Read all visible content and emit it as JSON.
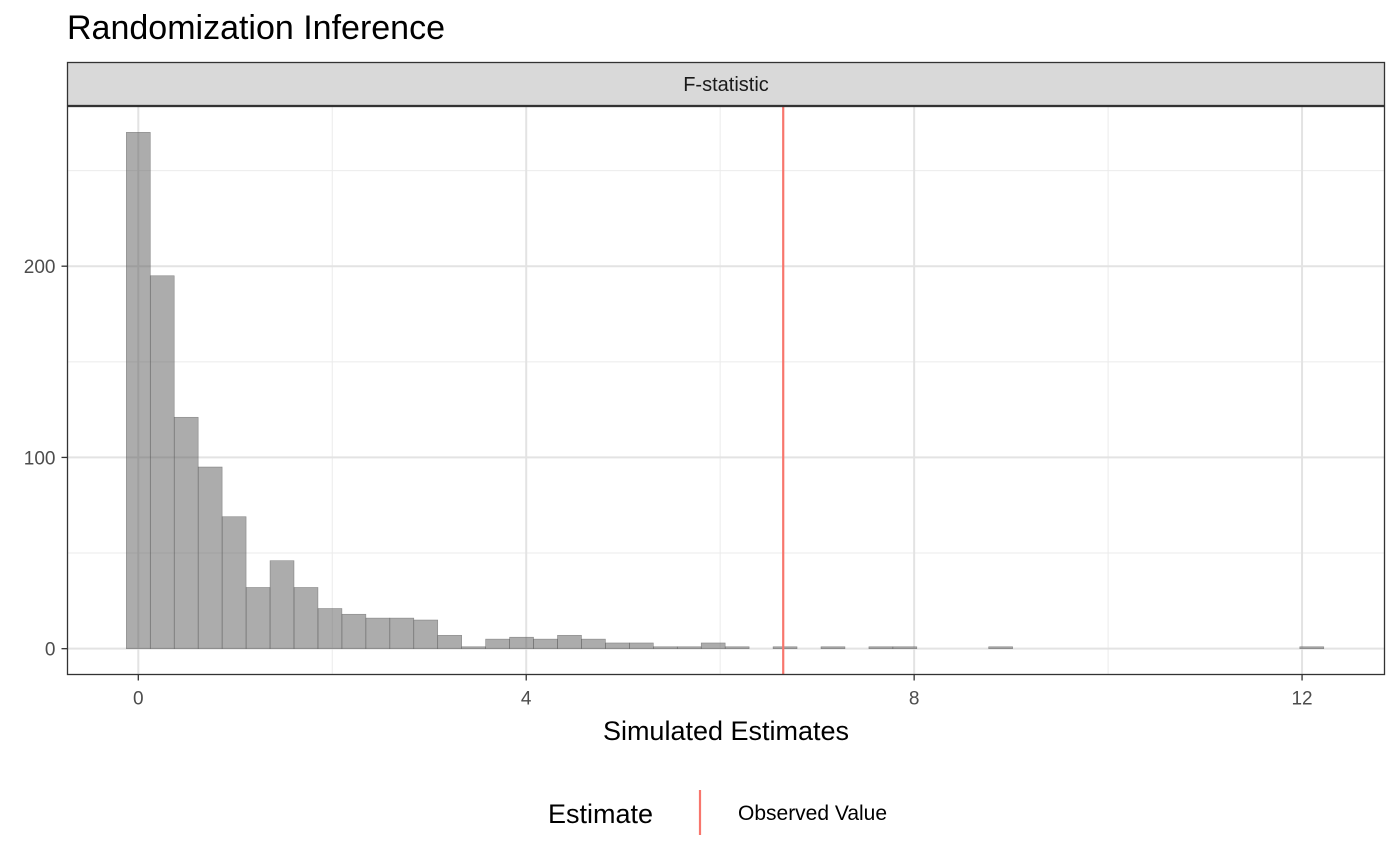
{
  "chart_data": {
    "type": "bar",
    "title": "Randomization Inference",
    "facet_label": "F-statistic",
    "xlabel": "Simulated Estimates",
    "ylabel": "",
    "xlim": [
      -0.73,
      12.85
    ],
    "ylim": [
      -13.5,
      283.5
    ],
    "x_ticks": [
      0,
      4,
      8,
      12
    ],
    "x_tick_labels": [
      "0",
      "4",
      "8",
      "12"
    ],
    "x_minor_ticks": [
      2,
      6,
      10
    ],
    "y_ticks": [
      0,
      100,
      200
    ],
    "y_tick_labels": [
      "0",
      "100",
      "200"
    ],
    "y_minor_ticks": [
      50,
      150,
      250
    ],
    "grid": true,
    "bin_width": 0.247,
    "bins": [
      {
        "x": 0.0,
        "count": 270
      },
      {
        "x": 0.247,
        "count": 195
      },
      {
        "x": 0.494,
        "count": 121
      },
      {
        "x": 0.741,
        "count": 95
      },
      {
        "x": 0.988,
        "count": 69
      },
      {
        "x": 1.235,
        "count": 32
      },
      {
        "x": 1.482,
        "count": 46
      },
      {
        "x": 1.729,
        "count": 32
      },
      {
        "x": 1.976,
        "count": 21
      },
      {
        "x": 2.223,
        "count": 18
      },
      {
        "x": 2.47,
        "count": 16
      },
      {
        "x": 2.717,
        "count": 16
      },
      {
        "x": 2.964,
        "count": 15
      },
      {
        "x": 3.211,
        "count": 7
      },
      {
        "x": 3.458,
        "count": 1
      },
      {
        "x": 3.705,
        "count": 5
      },
      {
        "x": 3.952,
        "count": 6
      },
      {
        "x": 4.199,
        "count": 5
      },
      {
        "x": 4.446,
        "count": 7
      },
      {
        "x": 4.693,
        "count": 5
      },
      {
        "x": 4.94,
        "count": 3
      },
      {
        "x": 5.187,
        "count": 3
      },
      {
        "x": 5.434,
        "count": 1
      },
      {
        "x": 5.681,
        "count": 1
      },
      {
        "x": 5.928,
        "count": 3
      },
      {
        "x": 6.175,
        "count": 1
      },
      {
        "x": 6.669,
        "count": 1
      },
      {
        "x": 7.163,
        "count": 1
      },
      {
        "x": 7.657,
        "count": 1
      },
      {
        "x": 7.904,
        "count": 1
      },
      {
        "x": 8.892,
        "count": 1
      },
      {
        "x": 12.1,
        "count": 1
      }
    ],
    "observed_value": 6.65,
    "colors": {
      "bar": "#595959",
      "observed_line": "#F8766D"
    },
    "legend": {
      "title": "Estimate",
      "entries": [
        {
          "label": "Observed Value",
          "color": "#F8766D"
        }
      ],
      "position": "bottom"
    }
  }
}
